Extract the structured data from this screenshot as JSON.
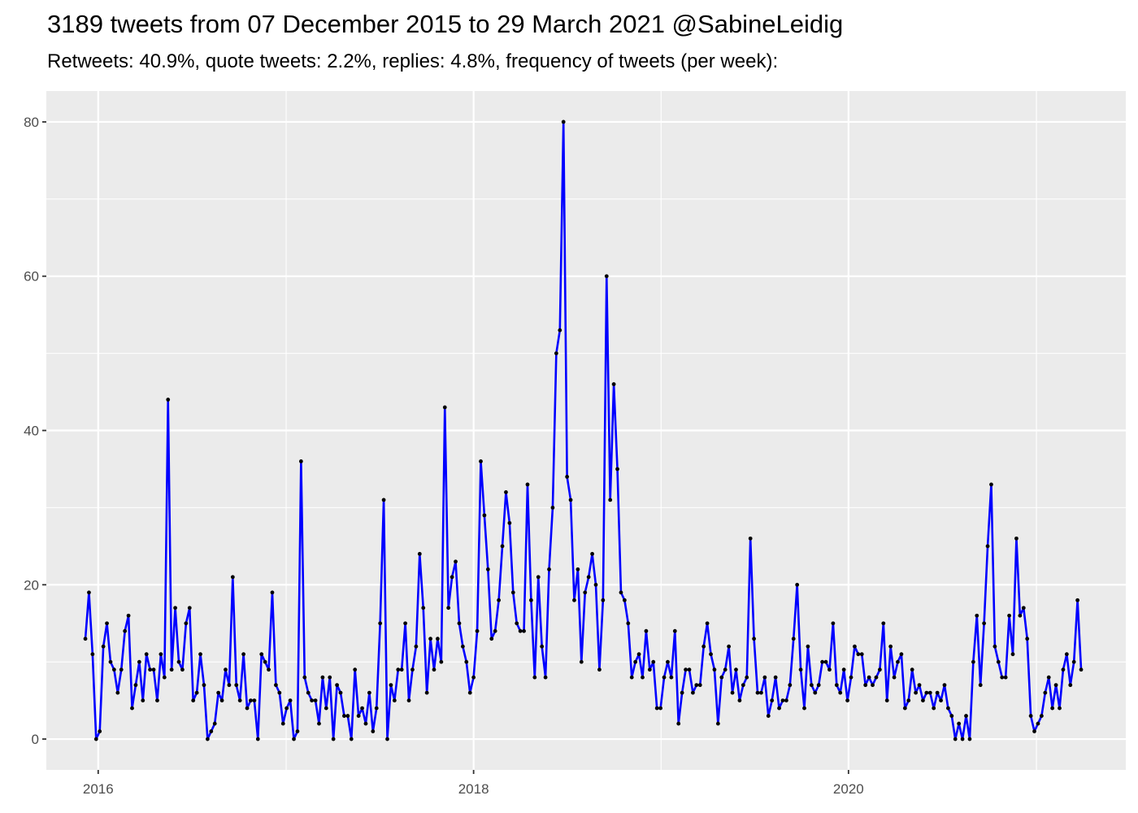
{
  "title": "3189 tweets from 07 December 2015 to 29 March 2021 @SabineLeidig",
  "subtitle": "Retweets: 40.9%, quote tweets: 2.2%, replies: 4.8%, frequency of tweets (per week):",
  "colors": {
    "panel_background": "#ebebeb",
    "grid": "#ffffff",
    "line": "#0000ff",
    "point": "#000000"
  },
  "chart_data": {
    "type": "line",
    "title": "3189 tweets from 07 December 2015 to 29 March 2021 @SabineLeidig",
    "subtitle": "Retweets: 40.9%, quote tweets: 2.2%, replies: 4.8%, frequency of tweets (per week):",
    "xlabel": "",
    "ylabel": "",
    "x_start": "2015-12-07",
    "x_step": "1 week",
    "xlim": [
      "2015-09-22",
      "2021-06-24"
    ],
    "ylim": [
      -4,
      84
    ],
    "x_ticks": [
      "2016",
      "2018",
      "2020"
    ],
    "y_ticks": [
      "0",
      "20",
      "40",
      "60",
      "80"
    ],
    "grid": true,
    "series": [
      {
        "values": [
          13,
          19,
          11,
          0,
          1,
          12,
          15,
          10,
          9,
          6,
          9,
          14,
          16,
          4,
          7,
          10,
          5,
          11,
          9,
          9,
          5,
          11,
          8,
          44,
          9,
          17,
          10,
          9,
          15,
          17,
          5,
          6,
          11,
          7,
          0,
          1,
          2,
          6,
          5,
          9,
          7,
          21,
          7,
          5,
          11,
          4,
          5,
          5,
          0,
          11,
          10,
          9,
          19,
          7,
          6,
          2,
          4,
          5,
          0,
          1,
          36,
          8,
          6,
          5,
          5,
          2,
          8,
          4,
          8,
          0,
          7,
          6,
          3,
          3,
          0,
          9,
          3,
          4,
          2,
          6,
          1,
          4,
          15,
          31,
          0,
          7,
          5,
          9,
          9,
          15,
          5,
          9,
          12,
          24,
          17,
          6,
          13,
          9,
          13,
          10,
          43,
          17,
          21,
          23,
          15,
          12,
          10,
          6,
          8,
          14,
          36,
          29,
          22,
          13,
          14,
          18,
          25,
          32,
          28,
          19,
          15,
          14,
          14,
          33,
          18,
          8,
          21,
          12,
          8,
          22,
          30,
          50,
          53,
          80,
          34,
          31,
          18,
          22,
          10,
          19,
          21,
          24,
          20,
          9,
          18,
          60,
          31,
          46,
          35,
          19,
          18,
          15,
          8,
          10,
          11,
          8,
          14,
          9,
          10,
          4,
          4,
          8,
          10,
          8,
          14,
          2,
          6,
          9,
          9,
          6,
          7,
          7,
          12,
          15,
          11,
          9,
          2,
          8,
          9,
          12,
          6,
          9,
          5,
          7,
          8,
          26,
          13,
          6,
          6,
          8,
          3,
          5,
          8,
          4,
          5,
          5,
          7,
          13,
          20,
          9,
          4,
          12,
          7,
          6,
          7,
          10,
          10,
          9,
          15,
          7,
          6,
          9,
          5,
          8,
          12,
          11,
          11,
          7,
          8,
          7,
          8,
          9,
          15,
          5,
          12,
          8,
          10,
          11,
          4,
          5,
          9,
          6,
          7,
          5,
          6,
          6,
          4,
          6,
          5,
          7,
          4,
          3,
          0,
          2,
          0,
          3,
          0,
          10,
          16,
          7,
          15,
          25,
          33,
          12,
          10,
          8,
          8,
          16,
          11,
          26,
          16,
          17,
          13,
          3,
          1,
          2,
          3,
          6,
          8,
          4,
          7,
          4,
          9,
          11,
          7,
          10,
          18,
          9
        ]
      }
    ]
  }
}
